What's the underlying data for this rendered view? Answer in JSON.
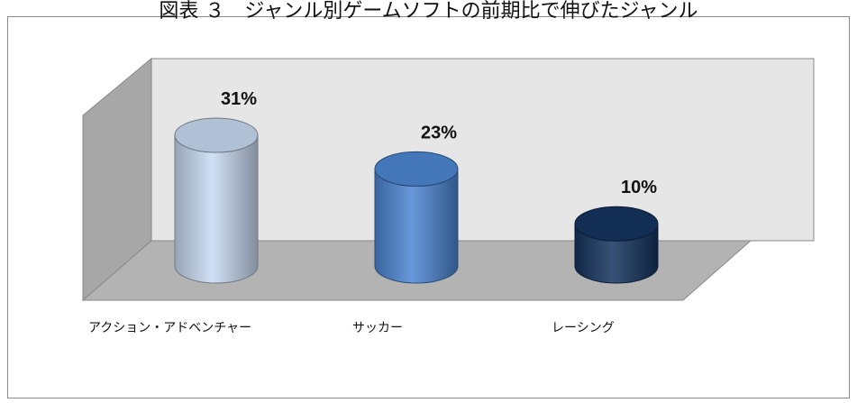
{
  "caption": "図表 ３　ジャンル別ゲームソフトの前期比で伸びたジャンル",
  "chart_data": {
    "type": "bar",
    "categories": [
      "アクション・アドベンチャー",
      "サッカー",
      "レーシング"
    ],
    "values": [
      31,
      23,
      10
    ],
    "value_labels": [
      "31%",
      "23%",
      "10%"
    ],
    "title": "",
    "xlabel": "",
    "ylabel": "",
    "ylim": [
      0,
      40
    ],
    "grid": false,
    "legend": "none",
    "style": "3d-cylinder",
    "colors": {
      "series": [
        "#c9dbf2",
        "#4d86d3",
        "#15345f"
      ],
      "back_wall": "#e6e6e6",
      "side_wall": "#a7a7a7",
      "floor": "#b3b3b3",
      "frame": "#888888"
    }
  }
}
